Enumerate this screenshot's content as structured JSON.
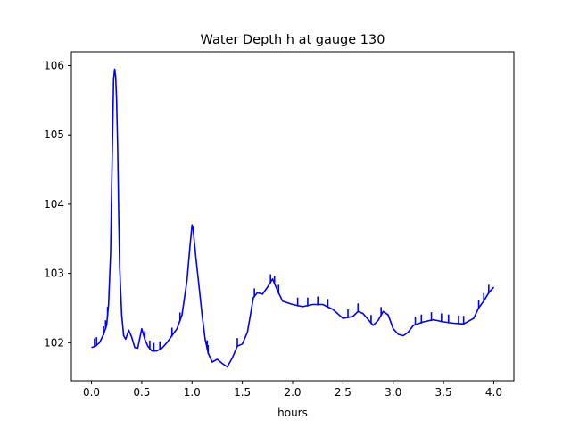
{
  "chart_data": {
    "type": "line",
    "title": "Water Depth h at gauge 130",
    "xlabel": "hours",
    "ylabel": "",
    "xlim": [
      -0.2,
      4.2
    ],
    "ylim": [
      101.45,
      106.2
    ],
    "xticks": [
      0.0,
      0.5,
      1.0,
      1.5,
      2.0,
      2.5,
      3.0,
      3.5,
      4.0
    ],
    "xtick_labels": [
      "0.0",
      "0.5",
      "1.0",
      "1.5",
      "2.0",
      "2.5",
      "3.0",
      "3.5",
      "4.0"
    ],
    "yticks": [
      102,
      103,
      104,
      105,
      106
    ],
    "ytick_labels": [
      "102",
      "103",
      "104",
      "105",
      "106"
    ],
    "grid": false,
    "colors": {
      "line": "#0000ff"
    },
    "series": [
      {
        "values_x": [
          0.0,
          0.04,
          0.08,
          0.12,
          0.15,
          0.17,
          0.19,
          0.2,
          0.21,
          0.22,
          0.23,
          0.24,
          0.25,
          0.26,
          0.27,
          0.28,
          0.3,
          0.32,
          0.34,
          0.37,
          0.4,
          0.43,
          0.46,
          0.5,
          0.53,
          0.56,
          0.6,
          0.65,
          0.7,
          0.75,
          0.8,
          0.85,
          0.9,
          0.95,
          0.98,
          1.0,
          1.01,
          1.02,
          1.04,
          1.07,
          1.1,
          1.13,
          1.16,
          1.2,
          1.25,
          1.3,
          1.35,
          1.4,
          1.45,
          1.5,
          1.55,
          1.58,
          1.61,
          1.65,
          1.7,
          1.75,
          1.8,
          1.85,
          1.9,
          2.0,
          2.1,
          2.2,
          2.3,
          2.4,
          2.5,
          2.6,
          2.65,
          2.7,
          2.8,
          2.85,
          2.9,
          2.95,
          3.0,
          3.05,
          3.1,
          3.15,
          3.2,
          3.3,
          3.4,
          3.5,
          3.6,
          3.7,
          3.8,
          3.85,
          3.9,
          3.95,
          4.0
        ],
        "values_y": [
          101.93,
          101.95,
          102.0,
          102.12,
          102.25,
          102.55,
          103.3,
          104.2,
          105.0,
          105.8,
          105.95,
          105.85,
          105.5,
          104.8,
          103.9,
          103.1,
          102.4,
          102.1,
          102.05,
          102.18,
          102.08,
          101.93,
          101.92,
          102.2,
          102.05,
          101.95,
          101.88,
          101.88,
          101.92,
          102.0,
          102.1,
          102.2,
          102.4,
          102.9,
          103.4,
          103.7,
          103.65,
          103.5,
          103.2,
          102.8,
          102.4,
          102.05,
          101.85,
          101.72,
          101.76,
          101.7,
          101.65,
          101.78,
          101.95,
          101.98,
          102.15,
          102.4,
          102.65,
          102.72,
          102.7,
          102.8,
          102.92,
          102.75,
          102.6,
          102.55,
          102.52,
          102.55,
          102.55,
          102.48,
          102.35,
          102.38,
          102.45,
          102.42,
          102.25,
          102.32,
          102.45,
          102.4,
          102.2,
          102.12,
          102.1,
          102.15,
          102.25,
          102.3,
          102.33,
          102.3,
          102.28,
          102.27,
          102.35,
          102.5,
          102.6,
          102.72,
          102.8
        ]
      }
    ]
  }
}
